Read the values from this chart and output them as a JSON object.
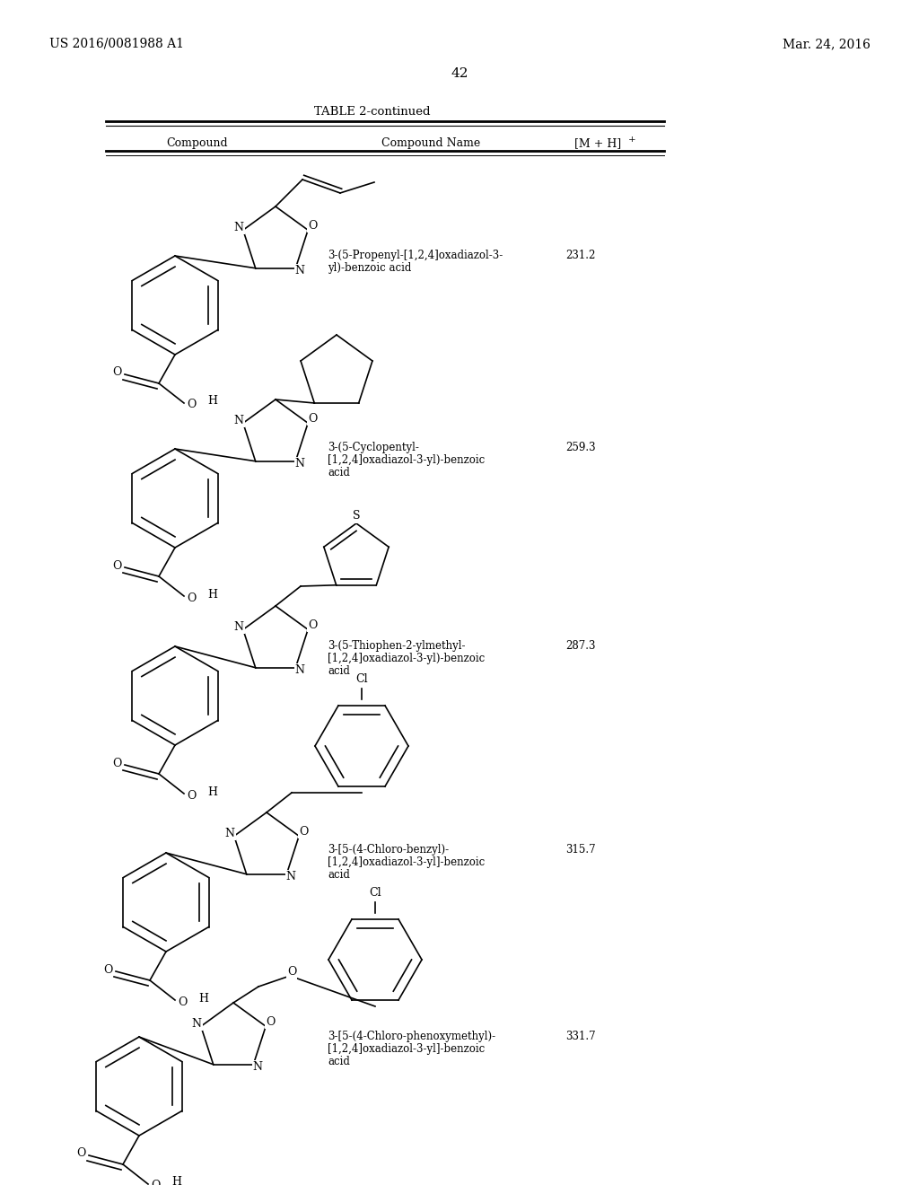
{
  "page_left": "US 2016/0081988 A1",
  "page_right": "Mar. 24, 2016",
  "page_number": "42",
  "table_title": "TABLE 2-continued",
  "col_headers": [
    "Compound",
    "Compound Name",
    "[M + H]+"
  ],
  "background_color": "#ffffff",
  "compounds": [
    {
      "name_line1": "3-(5-Propenyl-[1,2,4]oxadiazol-3-",
      "name_line2": "yl)-benzoic acid",
      "name_line3": "",
      "mw": "231.2"
    },
    {
      "name_line1": "3-(5-Cyclopentyl-",
      "name_line2": "[1,2,4]oxadiazol-3-yl)-benzoic",
      "name_line3": "acid",
      "mw": "259.3"
    },
    {
      "name_line1": "3-(5-Thiophen-2-ylmethyl-",
      "name_line2": "[1,2,4]oxadiazol-3-yl)-benzoic",
      "name_line3": "acid",
      "mw": "287.3"
    },
    {
      "name_line1": "3-[5-(4-Chloro-benzyl)-",
      "name_line2": "[1,2,4]oxadiazol-3-yl]-benzoic",
      "name_line3": "acid",
      "mw": "315.7"
    },
    {
      "name_line1": "3-[5-(4-Chloro-phenoxymethyl)-",
      "name_line2": "[1,2,4]oxadiazol-3-yl]-benzoic",
      "name_line3": "acid",
      "mw": "331.7"
    }
  ]
}
